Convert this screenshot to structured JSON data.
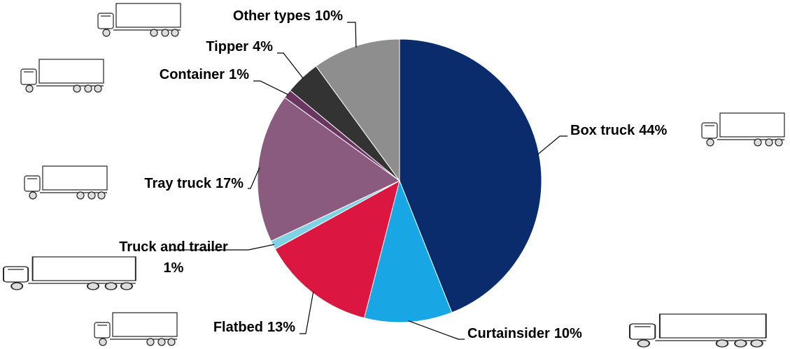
{
  "chart_data": {
    "type": "pie",
    "categories": [
      "Box truck",
      "Curtainsider",
      "Flatbed",
      "Truck and trailer",
      "Tray truck",
      "Container",
      "Tipper",
      "Other types"
    ],
    "values": [
      44,
      10,
      13,
      1,
      17,
      1,
      4,
      10
    ],
    "value_labels": [
      "44%",
      "10%",
      "13%",
      "1%",
      "17%",
      "1%",
      "4%",
      "10%"
    ],
    "colors": [
      "#0b2c6c",
      "#18a6e4",
      "#db1640",
      "#7fd2e6",
      "#8a5b7f",
      "#6a3560",
      "#333333",
      "#8e8e8e"
    ]
  }
}
